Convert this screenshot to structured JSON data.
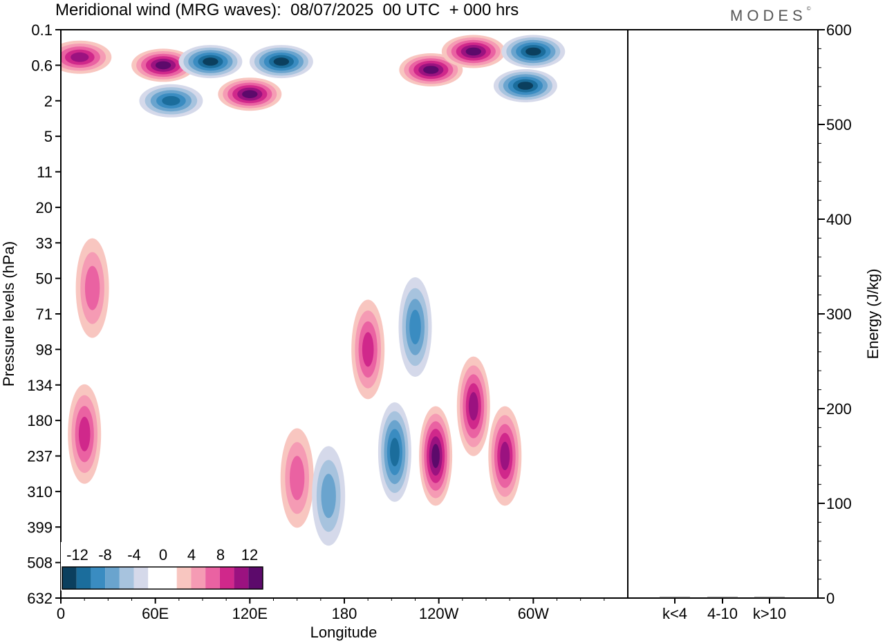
{
  "title": "Meridional wind (MRG waves):  08/07/2025  00 UTC  + 000 hrs",
  "brand": "MODES",
  "colors": {
    "neg": [
      "#0b3f5e",
      "#1b6d9c",
      "#3a8cc1",
      "#6aa4ce",
      "#a7c3de",
      "#d5d9ea"
    ],
    "pos": [
      "#f8c6c0",
      "#f59bb4",
      "#ea62a2",
      "#d0288b",
      "#9b1280",
      "#5c0a6b"
    ]
  },
  "chart_data": [
    {
      "type": "heatmap",
      "title": "Meridional wind (MRG waves):  08/07/2025  00 UTC  + 000 hrs",
      "xlabel": "Longitude",
      "ylabel": "Pressure levels (hPa)",
      "x_ticks": [
        "0",
        "60E",
        "120E",
        "180",
        "120W",
        "60W"
      ],
      "y_ticks": [
        "0.1",
        "0.6",
        "2",
        "5",
        "11",
        "20",
        "33",
        "50",
        "71",
        "98",
        "134",
        "180",
        "237",
        "310",
        "399",
        "508",
        "632"
      ],
      "colorbar": {
        "labels": [
          "-12",
          "-8",
          "-4",
          "0",
          "4",
          "8",
          "12"
        ],
        "levels": [
          -14,
          -12,
          -10,
          -8,
          -6,
          -4,
          -2,
          2,
          4,
          6,
          8,
          10,
          12,
          14
        ]
      },
      "features": [
        {
          "lon": 120,
          "p": 1.6,
          "sign": 1,
          "peak": 14
        },
        {
          "lon": 65,
          "p": 0.6,
          "sign": 1,
          "peak": 13
        },
        {
          "lon": 95,
          "p": 0.5,
          "sign": -1,
          "peak": -13
        },
        {
          "lon": 140,
          "p": 0.5,
          "sign": -1,
          "peak": -12
        },
        {
          "lon": 235,
          "p": 0.7,
          "sign": 1,
          "peak": 14
        },
        {
          "lon": 262,
          "p": 0.3,
          "sign": 1,
          "peak": 12
        },
        {
          "lon": 300,
          "p": 0.3,
          "sign": -1,
          "peak": -14
        },
        {
          "lon": 295,
          "p": 1.2,
          "sign": -1,
          "peak": -12
        },
        {
          "lon": 12,
          "p": 0.4,
          "sign": 1,
          "peak": 10
        },
        {
          "lon": 70,
          "p": 2,
          "sign": -1,
          "peak": -10
        },
        {
          "lon": 238,
          "p": 237,
          "sign": 1,
          "peak": 12
        },
        {
          "lon": 212,
          "p": 230,
          "sign": -1,
          "peak": -10
        },
        {
          "lon": 262,
          "p": 160,
          "sign": 1,
          "peak": 10
        },
        {
          "lon": 282,
          "p": 237,
          "sign": 1,
          "peak": 9
        },
        {
          "lon": 15,
          "p": 200,
          "sign": 1,
          "peak": 8
        },
        {
          "lon": 150,
          "p": 280,
          "sign": 1,
          "peak": 6
        },
        {
          "lon": 170,
          "p": 320,
          "sign": -1,
          "peak": -6
        },
        {
          "lon": 195,
          "p": 98,
          "sign": 1,
          "peak": 7
        },
        {
          "lon": 225,
          "p": 80,
          "sign": -1,
          "peak": -7
        },
        {
          "lon": 20,
          "p": 55,
          "sign": 1,
          "peak": 6
        }
      ]
    },
    {
      "type": "bar",
      "categories": [
        "k<4",
        "4-10",
        "k>10"
      ],
      "values": [
        0,
        0,
        0
      ],
      "ylabel": "Energy (J/kg)",
      "ylim": [
        0,
        600
      ],
      "y_ticks": [
        "0",
        "100",
        "200",
        "300",
        "400",
        "500",
        "600"
      ]
    }
  ]
}
